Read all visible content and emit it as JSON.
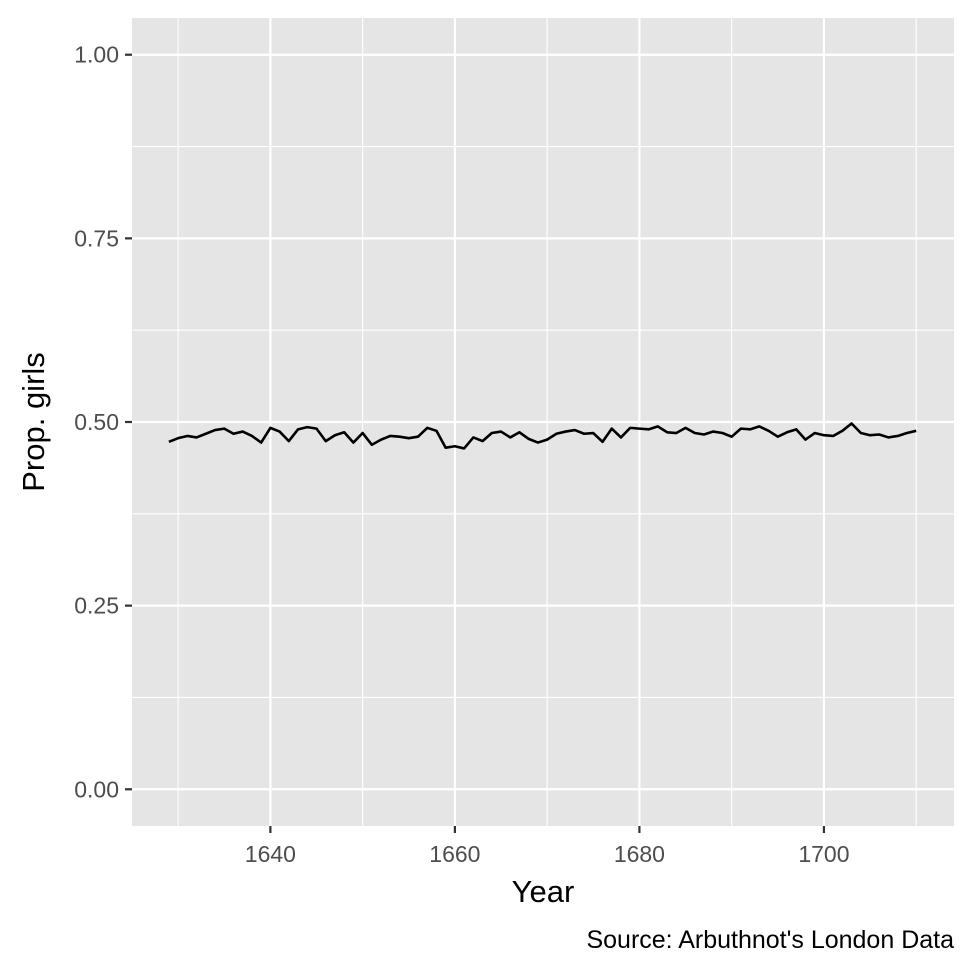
{
  "chart_data": {
    "type": "line",
    "title": "",
    "xlabel": "Year",
    "ylabel": "Prop. girls",
    "caption": "Source: Arbuthnot's London Data",
    "xlim": [
      1625.0,
      1714.1
    ],
    "ylim": [
      -0.05,
      1.05
    ],
    "x_ticks": [
      1640,
      1660,
      1680,
      1700
    ],
    "x_tick_labels": [
      "1640",
      "1660",
      "1680",
      "1700"
    ],
    "y_ticks": [
      0,
      0.25,
      0.5,
      0.75,
      1
    ],
    "y_tick_labels": [
      "0.00",
      "0.25",
      "0.50",
      "0.75",
      "1.00"
    ],
    "grid": true,
    "colors": {
      "panel": "#e5e5e5",
      "grid": "#ffffff",
      "line": "#000000",
      "tick": "#333333"
    },
    "series": [
      {
        "name": "Prop. girls",
        "x": [
          1629,
          1630,
          1631,
          1632,
          1633,
          1634,
          1635,
          1636,
          1637,
          1638,
          1639,
          1640,
          1641,
          1642,
          1643,
          1644,
          1645,
          1646,
          1647,
          1648,
          1649,
          1650,
          1651,
          1652,
          1653,
          1654,
          1655,
          1656,
          1657,
          1658,
          1659,
          1660,
          1661,
          1662,
          1663,
          1664,
          1665,
          1666,
          1667,
          1668,
          1669,
          1670,
          1671,
          1672,
          1673,
          1674,
          1675,
          1676,
          1677,
          1678,
          1679,
          1680,
          1681,
          1682,
          1683,
          1684,
          1685,
          1686,
          1687,
          1688,
          1689,
          1690,
          1691,
          1692,
          1693,
          1694,
          1695,
          1696,
          1697,
          1698,
          1699,
          1700,
          1701,
          1702,
          1703,
          1704,
          1705,
          1706,
          1707,
          1708,
          1709,
          1710
        ],
        "values": [
          0.473,
          0.478,
          0.481,
          0.479,
          0.484,
          0.489,
          0.491,
          0.484,
          0.487,
          0.481,
          0.472,
          0.492,
          0.487,
          0.474,
          0.49,
          0.493,
          0.491,
          0.474,
          0.482,
          0.486,
          0.472,
          0.485,
          0.469,
          0.476,
          0.481,
          0.48,
          0.478,
          0.48,
          0.492,
          0.488,
          0.465,
          0.467,
          0.464,
          0.479,
          0.474,
          0.485,
          0.487,
          0.479,
          0.486,
          0.477,
          0.472,
          0.476,
          0.484,
          0.487,
          0.489,
          0.484,
          0.485,
          0.473,
          0.491,
          0.479,
          0.492,
          0.491,
          0.49,
          0.494,
          0.486,
          0.485,
          0.492,
          0.485,
          0.483,
          0.487,
          0.485,
          0.48,
          0.491,
          0.49,
          0.494,
          0.488,
          0.48,
          0.486,
          0.49,
          0.476,
          0.485,
          0.482,
          0.481,
          0.488,
          0.498,
          0.485,
          0.482,
          0.483,
          0.479,
          0.481,
          0.485,
          0.488
        ]
      }
    ]
  }
}
